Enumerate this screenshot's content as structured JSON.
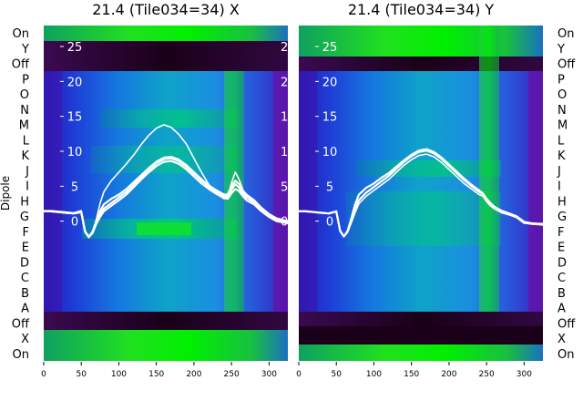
{
  "chart_data": [
    {
      "type": "heatmap",
      "title": "21.4 (Tile034=34) X",
      "ylabel": "Dipole",
      "dipole_rows": [
        "On",
        "Y",
        "Off",
        "P",
        "O",
        "N",
        "M",
        "L",
        "K",
        "J",
        "I",
        "H",
        "G",
        "F",
        "E",
        "D",
        "C",
        "B",
        "A",
        "Off",
        "X",
        "On"
      ],
      "x_ticks": [
        0,
        50,
        100,
        150,
        200,
        250,
        300
      ],
      "xlim": [
        0,
        325
      ],
      "y_ticks": [
        0,
        5,
        10,
        15,
        20,
        25
      ],
      "ylim": [
        -20,
        28
      ],
      "series": [
        {
          "x": [
            0,
            10,
            20,
            30,
            40,
            50,
            55,
            60,
            65,
            70,
            75,
            80,
            90,
            100,
            110,
            120,
            130,
            140,
            150,
            160,
            170,
            180,
            190,
            200,
            210,
            220,
            230,
            240,
            245,
            250,
            255,
            260,
            265,
            270,
            280,
            290,
            300,
            310,
            325
          ],
          "y": [
            1.5,
            1.5,
            1.4,
            1.3,
            1.2,
            1.5,
            -1.5,
            -2.3,
            -1.6,
            0.2,
            2.5,
            4.2,
            5.8,
            7.0,
            8.2,
            9.5,
            11.0,
            12.3,
            13.3,
            13.8,
            13.4,
            12.4,
            11.0,
            9.0,
            7.0,
            5.2,
            4.0,
            3.2,
            3.5,
            5.5,
            7.0,
            6.0,
            4.5,
            3.5,
            2.5,
            1.6,
            0.6,
            0.0,
            -0.3
          ]
        },
        {
          "x": [
            0,
            10,
            20,
            30,
            40,
            50,
            55,
            60,
            65,
            70,
            75,
            80,
            90,
            100,
            110,
            120,
            130,
            140,
            150,
            160,
            170,
            180,
            190,
            200,
            210,
            220,
            230,
            240,
            245,
            250,
            255,
            260,
            265,
            270,
            280,
            290,
            300,
            310,
            325
          ],
          "y": [
            1.4,
            1.4,
            1.3,
            1.2,
            1.1,
            1.3,
            -1.5,
            -2.3,
            -1.7,
            -0.4,
            0.6,
            1.4,
            2.2,
            3.0,
            3.8,
            4.9,
            6.0,
            7.0,
            7.9,
            8.5,
            8.6,
            8.2,
            7.4,
            6.4,
            5.4,
            4.6,
            3.9,
            3.3,
            3.2,
            4.0,
            4.6,
            4.3,
            3.6,
            3.0,
            2.4,
            1.4,
            0.6,
            0.0,
            -0.3
          ]
        },
        {
          "x": [
            0,
            10,
            20,
            30,
            40,
            50,
            55,
            60,
            65,
            70,
            75,
            80,
            90,
            100,
            110,
            120,
            130,
            140,
            150,
            160,
            170,
            180,
            190,
            200,
            210,
            220,
            230,
            240,
            245,
            250,
            255,
            260,
            265,
            270,
            280,
            290,
            300,
            310,
            325
          ],
          "y": [
            1.4,
            1.4,
            1.3,
            1.2,
            1.1,
            1.3,
            -1.5,
            -2.2,
            -1.6,
            -0.2,
            1.0,
            1.8,
            2.6,
            3.4,
            4.2,
            5.2,
            6.3,
            7.4,
            8.3,
            8.9,
            9.0,
            8.6,
            7.8,
            6.8,
            5.8,
            4.9,
            4.2,
            3.6,
            3.5,
            4.5,
            5.3,
            4.8,
            4.0,
            3.4,
            2.7,
            1.6,
            0.8,
            0.2,
            -0.2
          ]
        },
        {
          "x": [
            0,
            10,
            20,
            30,
            40,
            50,
            55,
            60,
            65,
            70,
            75,
            80,
            90,
            100,
            110,
            120,
            130,
            140,
            150,
            160,
            170,
            180,
            190,
            200,
            210,
            220,
            230,
            240,
            245,
            250,
            255,
            260,
            265,
            270,
            280,
            290,
            300,
            310,
            325
          ],
          "y": [
            1.4,
            1.4,
            1.3,
            1.2,
            1.1,
            1.3,
            -1.5,
            -2.3,
            -1.5,
            0.0,
            1.4,
            2.4,
            3.2,
            3.8,
            4.6,
            5.6,
            6.6,
            7.6,
            8.5,
            9.1,
            9.2,
            8.8,
            8.0,
            7.0,
            6.0,
            5.1,
            4.4,
            3.8,
            3.8,
            5.0,
            5.8,
            5.3,
            4.4,
            3.8,
            3.0,
            1.9,
            1.0,
            0.4,
            0.0
          ]
        }
      ]
    },
    {
      "type": "heatmap",
      "title": "21.4 (Tile034=34) Y",
      "ylabel": "",
      "dipole_rows": [
        "On",
        "Y",
        "Off",
        "P",
        "O",
        "N",
        "M",
        "L",
        "K",
        "J",
        "I",
        "H",
        "G",
        "F",
        "E",
        "D",
        "C",
        "B",
        "A",
        "Off",
        "X",
        "On"
      ],
      "x_ticks": [
        0,
        50,
        100,
        150,
        200,
        250,
        300
      ],
      "xlim": [
        0,
        325
      ],
      "y_ticks": [
        0,
        5,
        10,
        15,
        20,
        25
      ],
      "ylim": [
        -20,
        28
      ],
      "series": [
        {
          "x": [
            0,
            10,
            20,
            30,
            40,
            50,
            55,
            60,
            65,
            70,
            75,
            80,
            90,
            100,
            110,
            120,
            130,
            140,
            150,
            160,
            170,
            180,
            190,
            200,
            210,
            220,
            230,
            240,
            245,
            250,
            255,
            260,
            265,
            270,
            280,
            290,
            300,
            310,
            325
          ],
          "y": [
            1.4,
            1.4,
            1.3,
            1.2,
            1.1,
            1.4,
            -1.4,
            -2.2,
            -1.6,
            -0.2,
            1.2,
            2.5,
            3.6,
            4.4,
            5.2,
            6.0,
            7.0,
            8.0,
            8.8,
            9.4,
            9.6,
            9.2,
            8.4,
            7.4,
            6.4,
            5.4,
            4.6,
            3.8,
            3.6,
            2.8,
            2.2,
            1.8,
            1.5,
            1.2,
            0.9,
            0.5,
            -0.3,
            -0.4,
            -0.5
          ]
        },
        {
          "x": [
            0,
            10,
            20,
            30,
            40,
            50,
            55,
            60,
            65,
            70,
            75,
            80,
            90,
            100,
            110,
            120,
            130,
            140,
            150,
            160,
            170,
            180,
            190,
            200,
            210,
            220,
            230,
            240,
            245,
            250,
            255,
            260,
            265,
            270,
            280,
            290,
            300,
            310,
            325
          ],
          "y": [
            1.4,
            1.4,
            1.3,
            1.2,
            1.1,
            1.4,
            -1.4,
            -2.2,
            -1.5,
            0.0,
            1.6,
            3.0,
            4.1,
            4.9,
            5.7,
            6.5,
            7.5,
            8.5,
            9.3,
            9.9,
            10.1,
            9.7,
            8.9,
            7.9,
            6.9,
            5.9,
            5.0,
            4.2,
            3.9,
            3.1,
            2.5,
            2.0,
            1.7,
            1.4,
            1.0,
            0.6,
            -0.2,
            -0.4,
            -0.5
          ]
        },
        {
          "x": [
            0,
            10,
            20,
            30,
            40,
            50,
            55,
            60,
            65,
            70,
            75,
            80,
            90,
            100,
            110,
            120,
            130,
            140,
            150,
            160,
            170,
            180,
            190,
            200,
            210,
            220,
            230,
            240,
            245,
            250,
            255,
            260,
            265,
            270,
            280,
            290,
            300,
            310,
            325
          ],
          "y": [
            1.4,
            1.4,
            1.3,
            1.2,
            1.1,
            1.4,
            -1.4,
            -2.2,
            -1.4,
            0.4,
            2.4,
            3.8,
            4.8,
            5.4,
            6.2,
            6.9,
            7.8,
            8.7,
            9.5,
            10.1,
            10.3,
            9.9,
            9.1,
            8.1,
            7.1,
            6.1,
            5.2,
            4.4,
            4.0,
            3.2,
            2.6,
            2.1,
            1.8,
            1.5,
            1.1,
            0.7,
            -0.1,
            -0.3,
            -0.4
          ]
        }
      ]
    }
  ]
}
